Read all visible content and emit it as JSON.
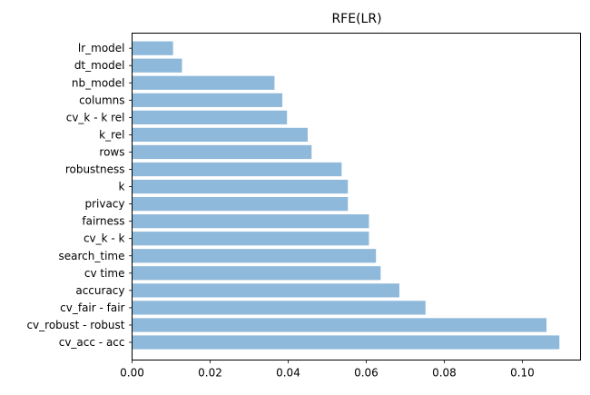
{
  "chart_data": {
    "type": "bar",
    "orientation": "horizontal",
    "title": "RFE(LR)",
    "xlabel": "",
    "ylabel": "",
    "categories": [
      "cv_acc - acc",
      "cv_robust - robust",
      "cv_fair - fair",
      "accuracy",
      "cv time",
      "search_time",
      "cv_k - k",
      "fairness",
      "privacy",
      "k",
      "robustness",
      "rows",
      "k_rel",
      "cv_k - k rel",
      "columns",
      "nb_model",
      "dt_model",
      "lr_model"
    ],
    "values": [
      0.1095,
      0.1062,
      0.0752,
      0.0685,
      0.0637,
      0.0625,
      0.0607,
      0.0607,
      0.0553,
      0.0553,
      0.0537,
      0.046,
      0.045,
      0.0397,
      0.0385,
      0.0365,
      0.0128,
      0.0105
    ],
    "xlim": [
      0.0,
      0.1149
    ],
    "xticks": [
      0.0,
      0.02,
      0.04,
      0.06,
      0.08,
      0.1
    ],
    "xtick_labels": [
      "0.00",
      "0.02",
      "0.04",
      "0.06",
      "0.08",
      "0.10"
    ],
    "bar_color": "#8fb9da",
    "grid": false,
    "legend": "none"
  }
}
